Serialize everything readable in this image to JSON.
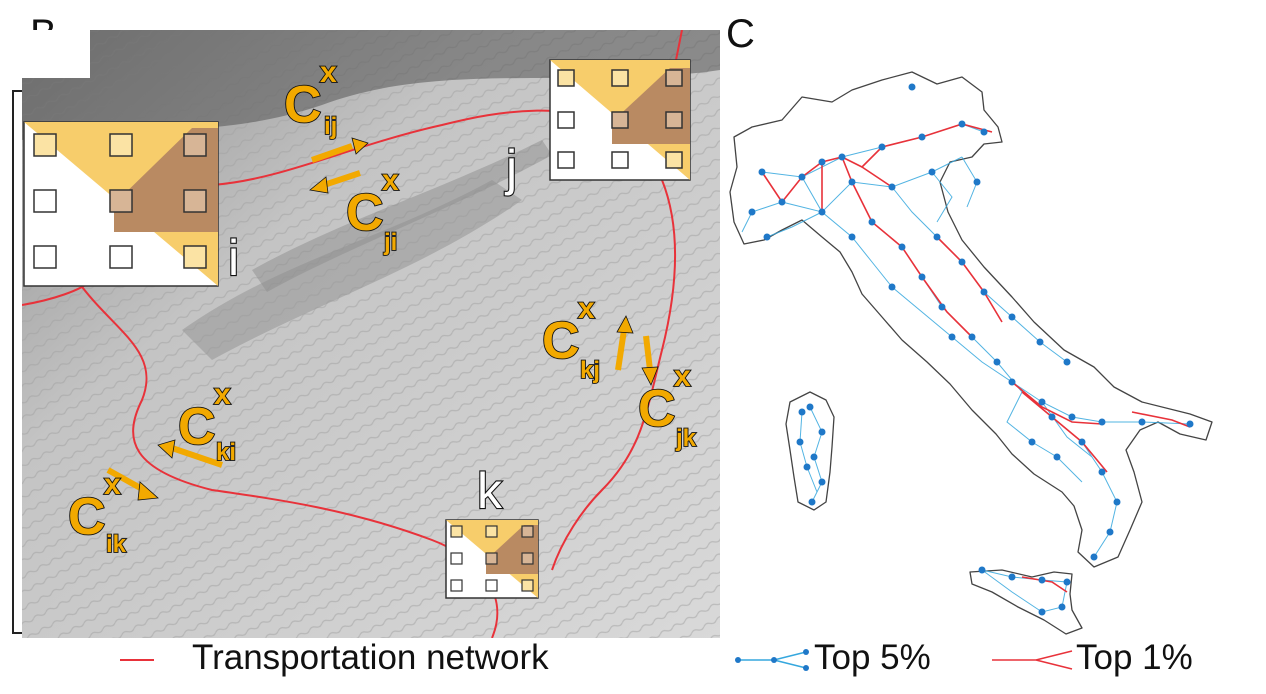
{
  "panels": {
    "b": {
      "letter": "B"
    },
    "c": {
      "letter": "C"
    }
  },
  "nodes": {
    "i": "i",
    "j": "j",
    "k": "k"
  },
  "flows": {
    "symbol": "C",
    "superscript": "x",
    "ij": "ij",
    "ji": "ji",
    "kj": "kj",
    "jk": "jk",
    "ki": "ki",
    "ik": "ik"
  },
  "legend": {
    "transport": "Transportation network",
    "top5": "Top 5%",
    "top1": "Top 1%"
  },
  "colors": {
    "road": "#e8323a",
    "flow_arrow": "#f2a900",
    "label_fill": "#f2a900",
    "top5_link": "#35a7de",
    "top5_node": "#1f78c8",
    "top1_link": "#e8323a",
    "patch_light": "#f7cd6b",
    "patch_dark": "#b98a62"
  }
}
